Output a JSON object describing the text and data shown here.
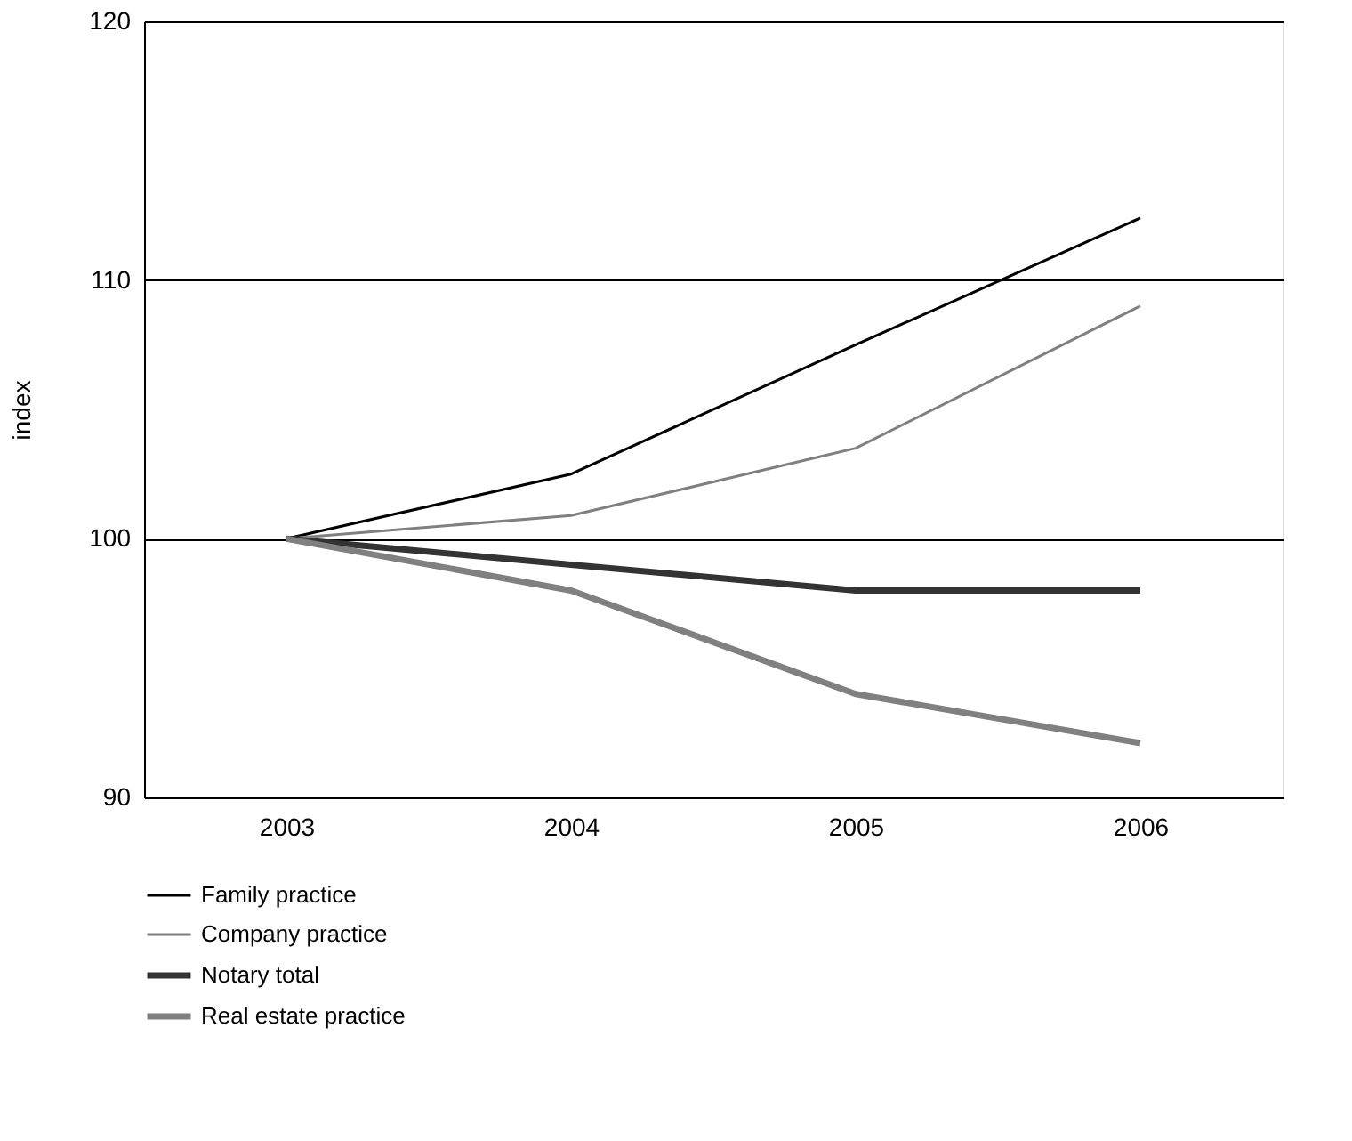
{
  "chart_data": {
    "type": "line",
    "ylabel": "index",
    "categories": [
      "2003",
      "2004",
      "2005",
      "2006"
    ],
    "series": [
      {
        "name": "Family practice",
        "color": "#000000",
        "values": [
          100,
          102.5,
          107.5,
          112.4
        ]
      },
      {
        "name": "Company practice",
        "color": "#808080",
        "values": [
          100,
          100.9,
          103.5,
          109.0
        ]
      },
      {
        "name": "Notary total",
        "color": "#333333",
        "values": [
          100,
          99.0,
          98.0,
          98.0
        ]
      },
      {
        "name": "Real estate practice",
        "color": "#808080",
        "values": [
          100,
          98.0,
          94.0,
          92.1
        ]
      }
    ],
    "ylim": [
      90,
      120
    ],
    "yticks": [
      90,
      100,
      110,
      120
    ],
    "grid": "y",
    "legend": "bottom",
    "marker": "none",
    "line_style": "solid"
  }
}
